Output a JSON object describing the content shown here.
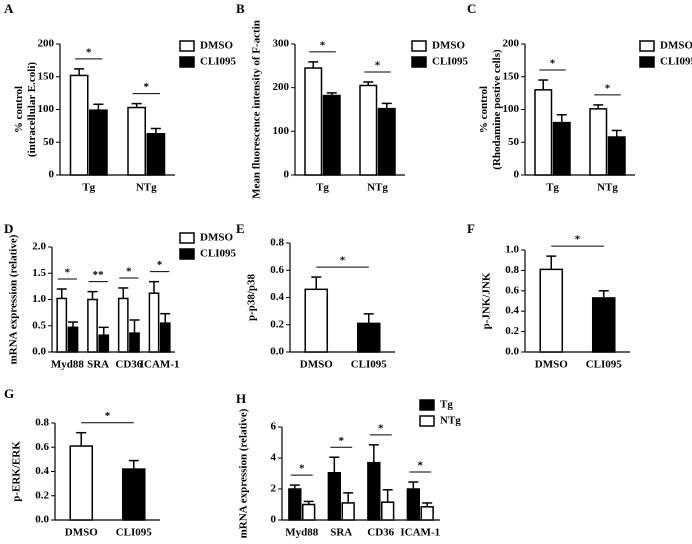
{
  "chart_data": [
    {
      "type": "grouped-bar",
      "label": "A",
      "ylabel": [
        "% control",
        "(intracellular E.coli)"
      ],
      "categories": [
        "Tg",
        "NTg"
      ],
      "series": [
        {
          "name": "DMSO",
          "color": "#ffffff",
          "values": [
            152,
            103
          ],
          "errors": [
            10,
            6
          ]
        },
        {
          "name": "CLI095",
          "color": "#000000",
          "values": [
            99,
            63
          ],
          "errors": [
            9,
            8
          ]
        }
      ],
      "annotations": [
        "*",
        "*"
      ],
      "ylim": [
        0,
        200
      ],
      "yticks": [
        0,
        50,
        100,
        150,
        200
      ]
    },
    {
      "type": "grouped-bar",
      "label": "B",
      "ylabel": [
        "Mean fluorescence intensity of F-actin"
      ],
      "categories": [
        "Tg",
        "NTg"
      ],
      "series": [
        {
          "name": "DMSO",
          "color": "#ffffff",
          "values": [
            245,
            205
          ],
          "errors": [
            14,
            8
          ]
        },
        {
          "name": "CLI095",
          "color": "#000000",
          "values": [
            182,
            152
          ],
          "errors": [
            6,
            12
          ]
        }
      ],
      "annotations": [
        "*",
        "*"
      ],
      "ylim": [
        0,
        300
      ],
      "yticks": [
        0,
        100,
        200,
        300
      ]
    },
    {
      "type": "grouped-bar",
      "label": "C",
      "ylabel": [
        "% control",
        "(Rhodamine postive cells)"
      ],
      "categories": [
        "Tg",
        "NTg"
      ],
      "series": [
        {
          "name": "DMSO",
          "color": "#ffffff",
          "values": [
            130,
            101
          ],
          "errors": [
            15,
            6
          ]
        },
        {
          "name": "CLI095",
          "color": "#000000",
          "values": [
            80,
            58
          ],
          "errors": [
            12,
            10
          ]
        }
      ],
      "annotations": [
        "*",
        "*"
      ],
      "ylim": [
        0,
        200
      ],
      "yticks": [
        0,
        50,
        100,
        150,
        200
      ]
    },
    {
      "type": "grouped-bar",
      "label": "D",
      "ylabel": [
        "mRNA expression (relative)"
      ],
      "categories": [
        "Myd88",
        "SRA",
        "CD36",
        "ICAM-1"
      ],
      "series": [
        {
          "name": "DMSO",
          "color": "#ffffff",
          "values": [
            1.02,
            1.0,
            1.02,
            1.12
          ],
          "errors": [
            0.18,
            0.15,
            0.2,
            0.22
          ]
        },
        {
          "name": "CLI095",
          "color": "#000000",
          "values": [
            0.47,
            0.32,
            0.36,
            0.55
          ],
          "errors": [
            0.1,
            0.15,
            0.25,
            0.18
          ]
        }
      ],
      "annotations": [
        "*",
        "**",
        "*",
        "*"
      ],
      "ylim": [
        0,
        2
      ],
      "yticks": [
        {
          "value": 0,
          "label": "0.0"
        },
        0.5,
        {
          "value": 1,
          "label": "1.0"
        },
        1.5,
        {
          "value": 2,
          "label": "2.0"
        }
      ]
    },
    {
      "type": "bar",
      "label": "E",
      "ylabel": [
        "p-p38/p38"
      ],
      "categories": [
        "DMSO",
        "CLI095"
      ],
      "values": [
        0.46,
        0.21
      ],
      "errors": [
        0.09,
        0.07
      ],
      "colors": [
        "#ffffff",
        "#000000"
      ],
      "annotations": [
        "*"
      ],
      "ylim": [
        0,
        0.8
      ],
      "yticks": [
        {
          "value": 0,
          "label": "0.0"
        },
        0.2,
        0.4,
        0.6,
        0.8
      ]
    },
    {
      "type": "bar",
      "label": "F",
      "ylabel": [
        "p-JNK/JNK"
      ],
      "categories": [
        "DMSO",
        "CLI095"
      ],
      "values": [
        0.81,
        0.53
      ],
      "errors": [
        0.13,
        0.07
      ],
      "colors": [
        "#ffffff",
        "#000000"
      ],
      "annotations": [
        "*"
      ],
      "ylim": [
        0,
        1
      ],
      "yticks": [
        {
          "value": 0,
          "label": "0.0"
        },
        0.2,
        0.4,
        0.6,
        0.8,
        {
          "value": 1,
          "label": "1.0"
        }
      ]
    },
    {
      "type": "bar",
      "label": "G",
      "ylabel": [
        "p-ERK/ERK"
      ],
      "categories": [
        "DMSO",
        "CLI095"
      ],
      "values": [
        0.61,
        0.42
      ],
      "errors": [
        0.11,
        0.07
      ],
      "colors": [
        "#ffffff",
        "#000000"
      ],
      "annotations": [
        "*"
      ],
      "ylim": [
        0,
        0.8
      ],
      "yticks": [
        {
          "value": 0,
          "label": "0.0"
        },
        0.2,
        0.4,
        0.6,
        0.8
      ]
    },
    {
      "type": "grouped-bar",
      "label": "H",
      "ylabel": [
        "mRNA expression (relative)"
      ],
      "categories": [
        "Myd88",
        "SRA",
        "CD36",
        "ICAM-1"
      ],
      "series": [
        {
          "name": "Tg",
          "color": "#000000",
          "values": [
            2.0,
            3.05,
            3.7,
            2.0
          ],
          "errors": [
            0.25,
            1.0,
            1.15,
            0.45
          ]
        },
        {
          "name": "NTg",
          "color": "#ffffff",
          "values": [
            1.0,
            1.1,
            1.15,
            0.85
          ],
          "errors": [
            0.2,
            0.65,
            0.8,
            0.25
          ]
        }
      ],
      "annotations": [
        "*",
        "*",
        "*",
        "*"
      ],
      "ylim": [
        0,
        6
      ],
      "yticks": [
        0,
        2,
        4,
        6
      ]
    }
  ]
}
